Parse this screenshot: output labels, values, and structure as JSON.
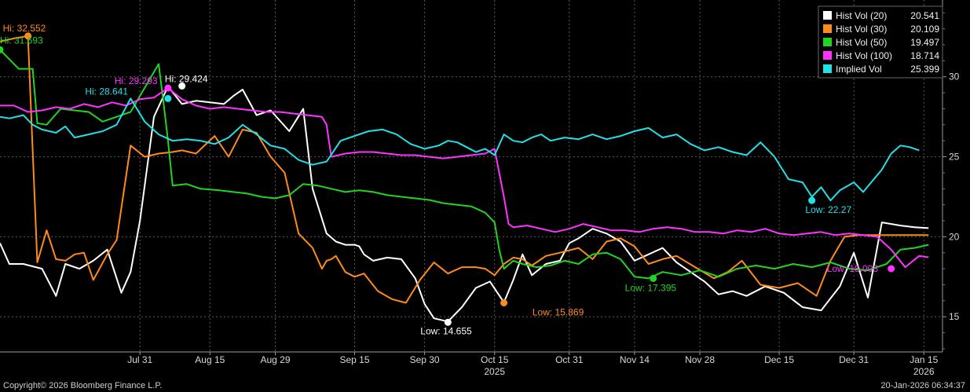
{
  "chart_data": {
    "type": "line",
    "x_tick_labels": [
      "Jul 31",
      "Aug 15",
      "Aug 29",
      "Sep 15",
      "Sep 30",
      "Oct 15",
      "Oct 31",
      "Nov 14",
      "Nov 28",
      "Dec 15",
      "Dec 31",
      "Jan 15"
    ],
    "x_tick_days": [
      30,
      45,
      59,
      76,
      91,
      106,
      122,
      136,
      150,
      167,
      183,
      198
    ],
    "year_labels": [
      {
        "label": "2025",
        "day": 106
      },
      {
        "label": "2026",
        "day": 198
      }
    ],
    "xlim_days": [
      0,
      202
    ],
    "y_ticks": [
      15,
      20,
      25,
      30
    ],
    "ylim": [
      12.8,
      34.8
    ],
    "series": [
      {
        "name": "Hist Vol (20)",
        "last": "20.541",
        "color": "#ffffff",
        "x": [
          0,
          2,
          5,
          9,
          12,
          14,
          17,
          20,
          23,
          26,
          28,
          30,
          33,
          36,
          39,
          42,
          45,
          48,
          50,
          52,
          55,
          58,
          62,
          65,
          67,
          70,
          72,
          74,
          76,
          77,
          78,
          80,
          83,
          86,
          89,
          91,
          93,
          96,
          99,
          102,
          105,
          108,
          110,
          112,
          114,
          117,
          120,
          122,
          124,
          127,
          130,
          133,
          136,
          139,
          142,
          145,
          148,
          151,
          154,
          157,
          160,
          164,
          168,
          172,
          176,
          180,
          183,
          186,
          189,
          191,
          193,
          196,
          199
        ],
        "y": [
          19.6,
          18.3,
          18.3,
          18.0,
          16.3,
          18.3,
          18.0,
          18.5,
          19.2,
          16.5,
          17.8,
          21.0,
          27.5,
          29.4,
          28.3,
          28.5,
          28.4,
          28.3,
          28.8,
          29.2,
          27.6,
          27.9,
          26.6,
          28.0,
          23.0,
          20.2,
          19.7,
          19.5,
          19.5,
          19.4,
          18.9,
          18.5,
          18.7,
          18.6,
          17.4,
          15.8,
          14.9,
          14.7,
          15.6,
          16.8,
          17.2,
          15.9,
          17.3,
          18.9,
          17.6,
          18.3,
          18.5,
          19.6,
          19.9,
          20.5,
          20.2,
          19.7,
          18.5,
          18.9,
          19.3,
          18.4,
          17.8,
          17.2,
          16.4,
          16.6,
          16.3,
          16.9,
          16.5,
          15.6,
          15.4,
          16.9,
          19.0,
          16.2,
          20.9,
          20.8,
          20.7,
          20.6,
          20.541
        ]
      },
      {
        "name": "Hist Vol (30)",
        "last": "20.109",
        "color": "#ff8c1a",
        "x": [
          0,
          3,
          6,
          8,
          10,
          12,
          14,
          16,
          18,
          20,
          23,
          25,
          28,
          31,
          34,
          37,
          39,
          42,
          46,
          49,
          52,
          55,
          58,
          61,
          64,
          67,
          69,
          70,
          71,
          72,
          74,
          76,
          78,
          81,
          84,
          87,
          90,
          93,
          96,
          99,
          102,
          104,
          106,
          108,
          110,
          112,
          114,
          117,
          120,
          124,
          127,
          130,
          133,
          136,
          139,
          142,
          145,
          149,
          153,
          156,
          159,
          163,
          167,
          171,
          175,
          178,
          181,
          184,
          187,
          190,
          193,
          196,
          199
        ],
        "y": [
          32.2,
          32.4,
          32.552,
          18.4,
          20.4,
          18.6,
          18.5,
          18.9,
          19.0,
          17.3,
          18.9,
          19.8,
          25.7,
          25.0,
          25.2,
          25.3,
          25.4,
          25.2,
          26.3,
          25.0,
          26.7,
          26.5,
          25.0,
          24.0,
          20.2,
          19.3,
          18.0,
          18.5,
          18.6,
          18.8,
          17.8,
          17.5,
          17.7,
          16.6,
          16.1,
          15.869,
          17.3,
          18.4,
          17.7,
          18.1,
          18.1,
          18.0,
          17.6,
          18.3,
          18.7,
          18.6,
          18.2,
          18.8,
          19.0,
          19.3,
          18.6,
          19.7,
          19.9,
          19.4,
          18.3,
          18.6,
          18.8,
          18.1,
          17.4,
          17.8,
          18.5,
          17.0,
          16.8,
          17.1,
          16.3,
          18.5,
          20.0,
          20.1,
          20.1,
          20.1,
          20.109,
          20.109,
          20.109
        ]
      },
      {
        "name": "Hist Vol (50)",
        "last": "19.497",
        "color": "#22d422",
        "x": [
          0,
          4,
          7,
          8,
          10,
          13,
          16,
          19,
          22,
          25,
          28,
          32,
          34,
          35,
          36,
          37,
          40,
          43,
          47,
          50,
          53,
          56,
          59,
          62,
          65,
          68,
          71,
          74,
          77,
          80,
          83,
          86,
          89,
          92,
          95,
          98,
          101,
          104,
          106,
          107,
          108,
          110,
          112,
          115,
          118,
          121,
          124,
          127,
          130,
          133,
          136,
          139,
          142,
          146,
          150,
          154,
          158,
          162,
          166,
          170,
          174,
          178,
          182,
          186,
          190,
          193,
          196,
          199
        ],
        "y": [
          31.693,
          30.5,
          30.5,
          27.1,
          27.0,
          28.0,
          27.9,
          27.8,
          27.2,
          27.5,
          27.8,
          29.8,
          30.8,
          28.5,
          26.0,
          23.2,
          23.3,
          23.0,
          22.9,
          22.8,
          22.7,
          22.5,
          22.4,
          22.6,
          23.3,
          23.2,
          23.0,
          22.8,
          22.9,
          22.8,
          22.6,
          22.5,
          22.4,
          22.3,
          22.1,
          22.0,
          21.9,
          21.5,
          20.9,
          19.2,
          18.0,
          18.5,
          18.3,
          18.1,
          18.2,
          18.5,
          18.3,
          18.9,
          19.0,
          18.6,
          17.5,
          17.395,
          17.8,
          17.6,
          17.9,
          17.5,
          18.0,
          18.2,
          18.0,
          18.3,
          18.1,
          18.4,
          18.0,
          17.9,
          18.3,
          19.2,
          19.3,
          19.497
        ]
      },
      {
        "name": "Hist Vol (100)",
        "last": "18.714",
        "color": "#ff33ff",
        "x": [
          0,
          3,
          6,
          9,
          12,
          15,
          18,
          21,
          24,
          27,
          30,
          33,
          36,
          39,
          42,
          45,
          48,
          51,
          54,
          57,
          60,
          63,
          66,
          69,
          70,
          71,
          74,
          77,
          80,
          83,
          86,
          89,
          92,
          95,
          98,
          101,
          104,
          106,
          107,
          108,
          109,
          110,
          113,
          116,
          119,
          122,
          125,
          128,
          131,
          134,
          137,
          140,
          143,
          146,
          149,
          152,
          155,
          158,
          161,
          164,
          167,
          170,
          173,
          176,
          179,
          182,
          185,
          188,
          191,
          194,
          197,
          199
        ],
        "y": [
          28.2,
          28.2,
          27.8,
          27.9,
          28.1,
          28.0,
          28.3,
          28.1,
          28.4,
          28.2,
          28.6,
          28.7,
          29.293,
          28.6,
          28.2,
          28.0,
          28.1,
          28.0,
          27.9,
          27.8,
          27.8,
          27.7,
          27.6,
          27.5,
          27.0,
          25.0,
          25.2,
          25.3,
          25.3,
          25.2,
          25.1,
          25.1,
          25.0,
          24.9,
          25.0,
          25.1,
          25.2,
          25.5,
          24.0,
          22.5,
          20.8,
          20.6,
          20.7,
          20.5,
          20.3,
          20.5,
          20.8,
          20.6,
          20.4,
          20.4,
          20.3,
          20.5,
          20.6,
          20.5,
          20.3,
          20.3,
          20.2,
          20.4,
          20.3,
          20.5,
          20.2,
          20.1,
          20.2,
          20.3,
          20.1,
          20.2,
          20.1,
          20.0,
          19.2,
          18.1,
          18.8,
          18.714
        ]
      },
      {
        "name": "Implied Vol",
        "last": "25.399",
        "color": "#22e0e8",
        "x": [
          0,
          2,
          5,
          7,
          9,
          12,
          14,
          16,
          19,
          22,
          25,
          28,
          31,
          34,
          37,
          40,
          43,
          46,
          49,
          52,
          55,
          58,
          61,
          64,
          67,
          70,
          73,
          76,
          79,
          82,
          85,
          88,
          91,
          94,
          96,
          98,
          100,
          102,
          104,
          106,
          108,
          110,
          112,
          114,
          116,
          118,
          121,
          124,
          127,
          130,
          133,
          136,
          139,
          142,
          145,
          148,
          151,
          154,
          157,
          160,
          163,
          166,
          169,
          172,
          174,
          176,
          178,
          180,
          183,
          185,
          187,
          189,
          191,
          193,
          195,
          197
        ],
        "y": [
          27.5,
          27.4,
          27.6,
          27.0,
          26.7,
          26.5,
          26.9,
          26.2,
          26.4,
          26.6,
          27.0,
          28.641,
          27.2,
          26.4,
          26.0,
          26.1,
          26.0,
          25.8,
          26.2,
          27.0,
          26.4,
          25.7,
          25.5,
          24.8,
          24.5,
          24.7,
          26.0,
          26.3,
          26.6,
          26.7,
          26.4,
          25.8,
          25.5,
          25.7,
          26.0,
          25.9,
          25.6,
          25.3,
          25.5,
          25.1,
          26.4,
          26.0,
          25.9,
          26.2,
          26.4,
          26.0,
          26.2,
          26.1,
          26.4,
          26.1,
          26.3,
          26.6,
          26.8,
          26.2,
          26.4,
          25.8,
          25.4,
          25.6,
          25.3,
          25.1,
          25.9,
          25.0,
          23.6,
          23.4,
          22.5,
          23.1,
          22.27,
          22.9,
          23.4,
          22.8,
          23.5,
          24.2,
          25.2,
          25.7,
          25.6,
          25.399
        ]
      }
    ],
    "annotations": [
      {
        "text": "Hi: 32.552",
        "series": 1,
        "x": 6,
        "y": 32.552,
        "dx": -32,
        "dy": -6
      },
      {
        "text": "Hi: 31.693",
        "series": 2,
        "x": 0,
        "y": 31.693,
        "dx": 0,
        "dy": -8
      },
      {
        "text": "Hi: 29.293",
        "series": 3,
        "x": 36,
        "y": 29.293,
        "dx": -68,
        "dy": -5
      },
      {
        "text": "Hi: 29.424",
        "series": 0,
        "x": 36,
        "y": 29.424,
        "dx": -4,
        "dy": -5
      },
      {
        "text": "Hi: 28.641",
        "series": 4,
        "x": 28,
        "y": 28.641,
        "dx": -58,
        "dy": -5
      },
      {
        "text": "Low: 14.655",
        "series": 0,
        "x": 96,
        "y": 14.7,
        "dx": -35,
        "dy": 16
      },
      {
        "text": "Low: 15.869",
        "series": 1,
        "x": 120,
        "y": 15.869,
        "dx": -35,
        "dy": 16
      },
      {
        "text": "Low: 17.395",
        "series": 2,
        "x": 140,
        "y": 17.395,
        "dx": -36,
        "dy": 16
      },
      {
        "text": "Low: 22.27",
        "series": 4,
        "x": 178,
        "y": 22.27,
        "dx": -32,
        "dy": 16
      },
      {
        "text": "Low: 18.003",
        "series": 3,
        "x": 191,
        "y": 18.1,
        "dx": -82,
        "dy": 6
      }
    ],
    "annotation_points": [
      {
        "series": 1,
        "x": 6,
        "y": 32.552,
        "color": "#ff8c1a"
      },
      {
        "series": 2,
        "x": 0,
        "y": 31.693,
        "color": "#22d422"
      },
      {
        "series": 3,
        "x": 36,
        "y": 29.293,
        "color": "#ff33ff"
      },
      {
        "series": 0,
        "x": 39,
        "y": 29.424,
        "color": "#ffffff"
      },
      {
        "series": 4,
        "x": 36,
        "y": 28.641,
        "color": "#22e0e8"
      },
      {
        "series": 0,
        "x": 96,
        "y": 14.655,
        "color": "#ffffff"
      },
      {
        "series": 1,
        "x": 108,
        "y": 15.869,
        "color": "#ff8c1a"
      },
      {
        "series": 2,
        "x": 140,
        "y": 17.395,
        "color": "#22d422"
      },
      {
        "series": 4,
        "x": 174,
        "y": 22.27,
        "color": "#22e0e8"
      },
      {
        "series": 3,
        "x": 191,
        "y": 18.003,
        "color": "#ff33ff"
      }
    ],
    "legend_position": "top-right",
    "grid": true
  },
  "footer": {
    "copyright": "Copyright© 2026 Bloomberg Finance L.P.",
    "timestamp": "20-Jan-2026 06:34:37"
  }
}
